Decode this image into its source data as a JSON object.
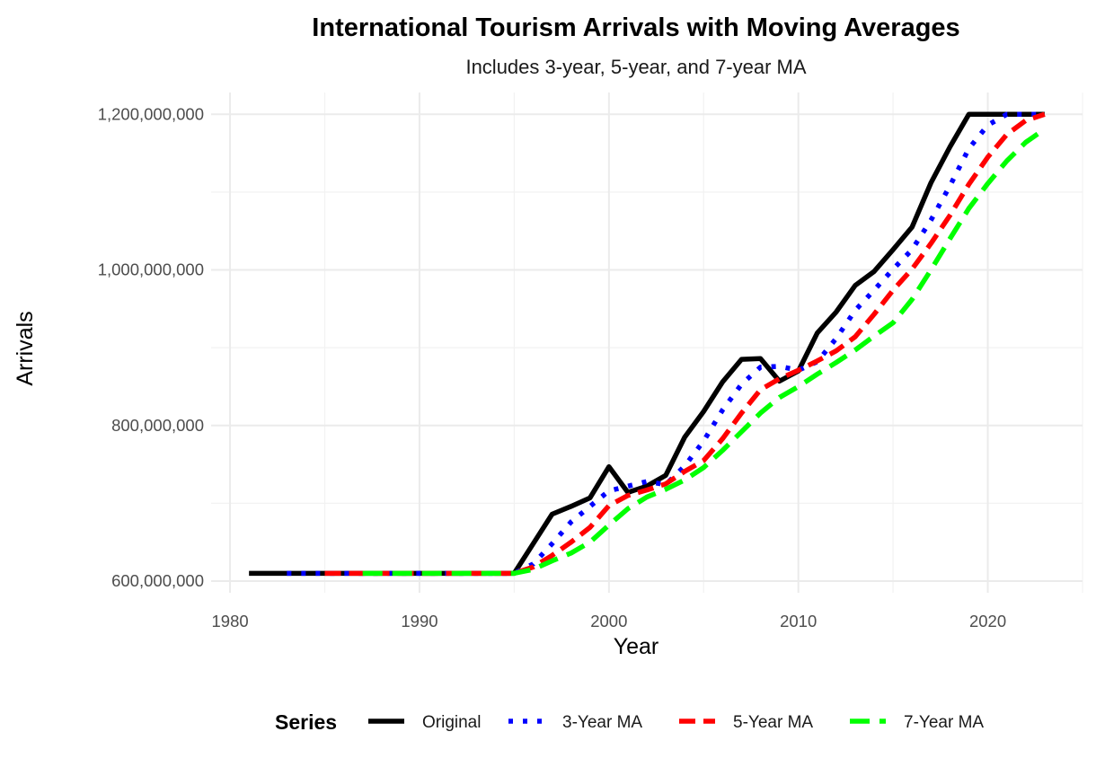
{
  "chart_data": {
    "type": "line",
    "title": "International Tourism Arrivals with Moving Averages",
    "subtitle": "Includes 3-year, 5-year, and 7-year MA",
    "xlabel": "Year",
    "ylabel": "Arrivals",
    "xlim": [
      1980,
      2023
    ],
    "ylim": [
      600000000,
      1200000000
    ],
    "x_ticks": [
      1980,
      1990,
      2000,
      2010,
      2020
    ],
    "x_tick_labels": [
      "1980",
      "1990",
      "2000",
      "2010",
      "2020"
    ],
    "y_ticks": [
      600000000,
      800000000,
      1000000000,
      1200000000
    ],
    "y_tick_labels": [
      "600,000,000",
      "800,000,000",
      "1,000,000,000",
      "1,200,000,000"
    ],
    "grid": true,
    "legend": {
      "title": "Series",
      "position": "bottom"
    },
    "x": [
      1981,
      1982,
      1983,
      1984,
      1985,
      1986,
      1987,
      1988,
      1989,
      1990,
      1991,
      1992,
      1993,
      1994,
      1995,
      1996,
      1997,
      1998,
      1999,
      2000,
      2001,
      2002,
      2003,
      2004,
      2005,
      2006,
      2007,
      2008,
      2009,
      2010,
      2011,
      2012,
      2013,
      2014,
      2015,
      2016,
      2017,
      2018,
      2019,
      2020,
      2021,
      2022,
      2023
    ],
    "series": [
      {
        "name": "Original",
        "color": "#000000",
        "dash": "solid",
        "values": [
          610000000,
          610000000,
          610000000,
          610000000,
          610000000,
          610000000,
          610000000,
          610000000,
          610000000,
          610000000,
          610000000,
          610000000,
          610000000,
          610000000,
          610000000,
          648000000,
          686000000,
          696000000,
          707000000,
          747000000,
          714000000,
          722000000,
          736000000,
          785000000,
          818000000,
          856000000,
          885000000,
          886000000,
          857000000,
          870000000,
          919000000,
          946000000,
          980000000,
          998000000,
          1026000000,
          1055000000,
          1112000000,
          1158000000,
          1200000000,
          1200000000,
          1200000000,
          1200000000,
          1200000000
        ]
      },
      {
        "name": "3-Year MA",
        "color": "#0000ff",
        "dash": "dotted",
        "values": [
          null,
          null,
          610000000,
          610000000,
          610000000,
          610000000,
          610000000,
          610000000,
          610000000,
          610000000,
          610000000,
          610000000,
          610000000,
          610000000,
          610000000,
          622000000,
          648000000,
          676000000,
          696000000,
          716000000,
          722000000,
          728000000,
          724000000,
          748000000,
          780000000,
          820000000,
          853000000,
          875000000,
          876000000,
          871000000,
          882000000,
          912000000,
          948000000,
          974000000,
          1001000000,
          1026000000,
          1064000000,
          1108000000,
          1156000000,
          1186000000,
          1200000000,
          1200000000,
          1200000000
        ]
      },
      {
        "name": "5-Year MA",
        "color": "#ff0000",
        "dash": "dashed",
        "values": [
          null,
          null,
          null,
          null,
          610000000,
          610000000,
          610000000,
          610000000,
          610000000,
          610000000,
          610000000,
          610000000,
          610000000,
          610000000,
          610000000,
          618000000,
          633000000,
          650000000,
          669000000,
          697000000,
          710000000,
          717000000,
          725000000,
          741000000,
          755000000,
          783000000,
          816000000,
          846000000,
          860000000,
          871000000,
          883000000,
          896000000,
          914000000,
          943000000,
          974000000,
          1001000000,
          1034000000,
          1070000000,
          1110000000,
          1145000000,
          1174000000,
          1192000000,
          1200000000
        ]
      },
      {
        "name": "7-Year MA",
        "color": "#00ff00",
        "dash": "longdash",
        "values": [
          null,
          null,
          null,
          null,
          null,
          null,
          610000000,
          610000000,
          610000000,
          610000000,
          610000000,
          610000000,
          610000000,
          610000000,
          610000000,
          615000000,
          626000000,
          636000000,
          650000000,
          672000000,
          693000000,
          708000000,
          718000000,
          730000000,
          746000000,
          768000000,
          792000000,
          816000000,
          836000000,
          850000000,
          866000000,
          881000000,
          897000000,
          915000000,
          932000000,
          962000000,
          1000000000,
          1040000000,
          1079000000,
          1111000000,
          1140000000,
          1164000000,
          1181000000
        ]
      }
    ]
  }
}
